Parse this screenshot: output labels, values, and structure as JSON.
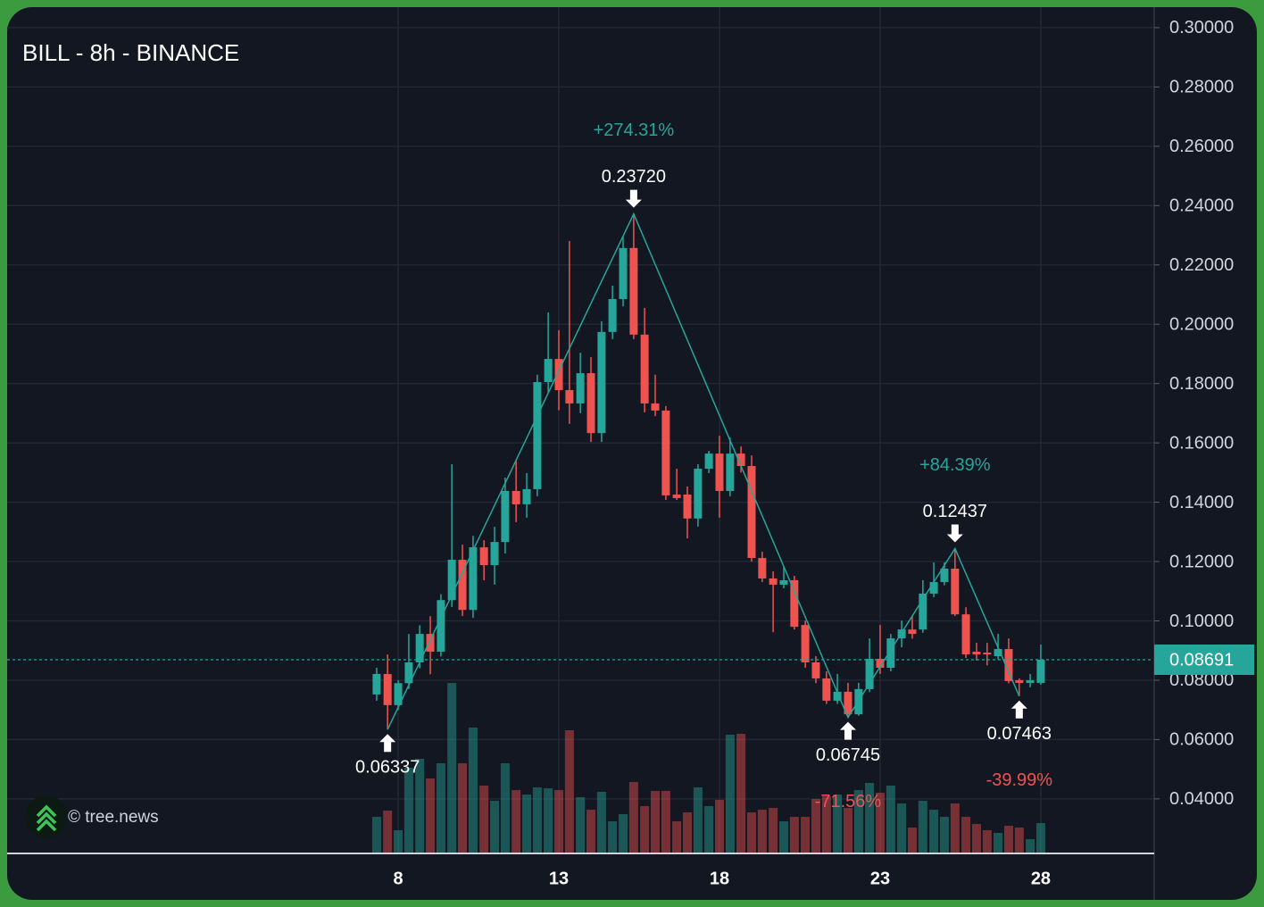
{
  "chart_data": {
    "type": "candlestick",
    "title": "BILL - 8h - BINANCE",
    "watermark": "© tree.news",
    "up_color": "#26a69a",
    "down_color": "#ef5350",
    "x": [
      7.33,
      7.67,
      8,
      8.33,
      8.67,
      9,
      9.33,
      9.67,
      10,
      10.33,
      10.67,
      11,
      11.33,
      11.67,
      12,
      12.33,
      12.67,
      13,
      13.33,
      13.67,
      14,
      14.33,
      14.67,
      15,
      15.33,
      15.67,
      16,
      16.33,
      16.67,
      17,
      17.33,
      17.67,
      18,
      18.33,
      18.67,
      19,
      19.33,
      19.67,
      20,
      20.33,
      20.67,
      21,
      21.33,
      21.67,
      22,
      22.33,
      22.67,
      23,
      23.33,
      23.67,
      24,
      24.33,
      24.67,
      25,
      25.33,
      25.67,
      26,
      26.33,
      26.67,
      27,
      27.33,
      27.67,
      28
    ],
    "open": [
      0.0752,
      0.0821,
      0.0716,
      0.079,
      0.086,
      0.0956,
      0.0896,
      0.107,
      0.1206,
      0.1037,
      0.1248,
      0.1188,
      0.1266,
      0.1438,
      0.1393,
      0.1444,
      0.1805,
      0.1883,
      0.1778,
      0.1733,
      0.1835,
      0.1633,
      0.1974,
      0.2085,
      0.2257,
      0.1965,
      0.1733,
      0.1709,
      0.1426,
      0.1426,
      0.1345,
      0.1513,
      0.1564,
      0.1438,
      0.1564,
      0.1522,
      0.1212,
      0.1143,
      0.1122,
      0.1137,
      0.0986,
      0.086,
      0.0806,
      0.0731,
      0.0761,
      0.0685,
      0.077,
      0.0872,
      0.0842,
      0.0941,
      0.0971,
      0.0971,
      0.1092,
      0.1131,
      0.1176,
      0.1022,
      0.0896,
      0.0893,
      0.0881,
      0.0905,
      0.08,
      0.0791,
      0.0791
    ],
    "high": [
      0.0842,
      0.0887,
      0.08,
      0.0956,
      0.0985,
      0.1016,
      0.109,
      0.1528,
      0.1257,
      0.1287,
      0.1272,
      0.1317,
      0.1483,
      0.1543,
      0.1498,
      0.183,
      0.204,
      0.198,
      0.2281,
      0.1904,
      0.1889,
      0.201,
      0.213,
      0.2296,
      0.2372,
      0.2055,
      0.183,
      0.1724,
      0.1513,
      0.1453,
      0.1528,
      0.1573,
      0.1624,
      0.1618,
      0.1588,
      0.1558,
      0.1233,
      0.1167,
      0.1182,
      0.1152,
      0.1001,
      0.0881,
      0.083,
      0.0821,
      0.0791,
      0.0791,
      0.0941,
      0.0986,
      0.0956,
      0.1001,
      0.1016,
      0.1137,
      0.1197,
      0.1197,
      0.12437,
      0.1046,
      0.0926,
      0.0926,
      0.0956,
      0.0941,
      0.0806,
      0.0821,
      0.092
    ],
    "low": [
      0.0731,
      0.06337,
      0.07,
      0.077,
      0.084,
      0.082,
      0.088,
      0.1047,
      0.1016,
      0.101,
      0.1137,
      0.1122,
      0.1227,
      0.1333,
      0.1348,
      0.142,
      0.177,
      0.171,
      0.1664,
      0.17,
      0.1603,
      0.1603,
      0.195,
      0.206,
      0.195,
      0.1703,
      0.169,
      0.1408,
      0.1408,
      0.1278,
      0.1318,
      0.1498,
      0.1348,
      0.142,
      0.15,
      0.12,
      0.1131,
      0.0962,
      0.111,
      0.0971,
      0.0842,
      0.079,
      0.072,
      0.072,
      0.06745,
      0.068,
      0.076,
      0.0821,
      0.083,
      0.0911,
      0.094,
      0.096,
      0.108,
      0.112,
      0.1016,
      0.0875,
      0.0866,
      0.085,
      0.087,
      0.079,
      0.07463,
      0.0776,
      0.0785
    ],
    "close": [
      0.0821,
      0.0716,
      0.079,
      0.086,
      0.0956,
      0.0896,
      0.107,
      0.1206,
      0.1037,
      0.1248,
      0.1188,
      0.1266,
      0.1438,
      0.1393,
      0.1444,
      0.1805,
      0.1883,
      0.1778,
      0.1733,
      0.1835,
      0.1633,
      0.1974,
      0.2085,
      0.2257,
      0.1965,
      0.1733,
      0.1709,
      0.1423,
      0.1414,
      0.1345,
      0.1513,
      0.1564,
      0.1438,
      0.1564,
      0.1522,
      0.1212,
      0.1143,
      0.1122,
      0.1137,
      0.098,
      0.086,
      0.0806,
      0.0731,
      0.0761,
      0.0685,
      0.077,
      0.0872,
      0.0842,
      0.0941,
      0.0971,
      0.0956,
      0.1092,
      0.1131,
      0.1176,
      0.1022,
      0.0887,
      0.0887,
      0.0887,
      0.0905,
      0.0797,
      0.0791,
      0.08,
      0.0869
    ],
    "volume": [
      40,
      47,
      25,
      95,
      105,
      83,
      100,
      190,
      100,
      140,
      75,
      58,
      100,
      70,
      65,
      73,
      72,
      70,
      137,
      62,
      48,
      68,
      35,
      43,
      79,
      52,
      69,
      69,
      35,
      45,
      73,
      52,
      59,
      132,
      133,
      45,
      48,
      50,
      35,
      40,
      40,
      60,
      63,
      65,
      50,
      70,
      78,
      67,
      75,
      55,
      28,
      58,
      48,
      40,
      55,
      40,
      32,
      25,
      22,
      30,
      28,
      15,
      33
    ],
    "pivots": [
      {
        "x": 7.67,
        "value": 0.06337,
        "label": "0.06337",
        "kind": "low"
      },
      {
        "x": 15.33,
        "value": 0.2372,
        "label": "0.23720",
        "change": "+274.31%",
        "kind": "high"
      },
      {
        "x": 22,
        "value": 0.06745,
        "label": "0.06745",
        "change": "-71.56%",
        "kind": "low"
      },
      {
        "x": 25.33,
        "value": 0.12437,
        "label": "0.12437",
        "change": "+84.39%",
        "kind": "high"
      },
      {
        "x": 27.33,
        "value": 0.07463,
        "label": "0.07463",
        "change": "-39.99%",
        "kind": "low"
      }
    ],
    "last_price": {
      "value": 0.08691,
      "label": "0.08691"
    },
    "xlim": [
      -4.17,
      31.53
    ],
    "ylim": [
      0.0219,
      0.3069
    ],
    "xticks": [
      8,
      13,
      18,
      23,
      28
    ],
    "yticks": [
      {
        "value": 0.04,
        "label": "0.04000"
      },
      {
        "value": 0.06,
        "label": "0.06000"
      },
      {
        "value": 0.08,
        "label": "0.08000"
      },
      {
        "value": 0.1,
        "label": "0.10000"
      },
      {
        "value": 0.12,
        "label": "0.12000"
      },
      {
        "value": 0.14,
        "label": "0.14000"
      },
      {
        "value": 0.16,
        "label": "0.16000"
      },
      {
        "value": 0.18,
        "label": "0.18000"
      },
      {
        "value": 0.2,
        "label": "0.20000"
      },
      {
        "value": 0.22,
        "label": "0.22000"
      },
      {
        "value": 0.24,
        "label": "0.24000"
      },
      {
        "value": 0.26,
        "label": "0.26000"
      },
      {
        "value": 0.28,
        "label": "0.28000"
      },
      {
        "value": 0.3,
        "label": "0.30000"
      }
    ],
    "grid": true
  }
}
